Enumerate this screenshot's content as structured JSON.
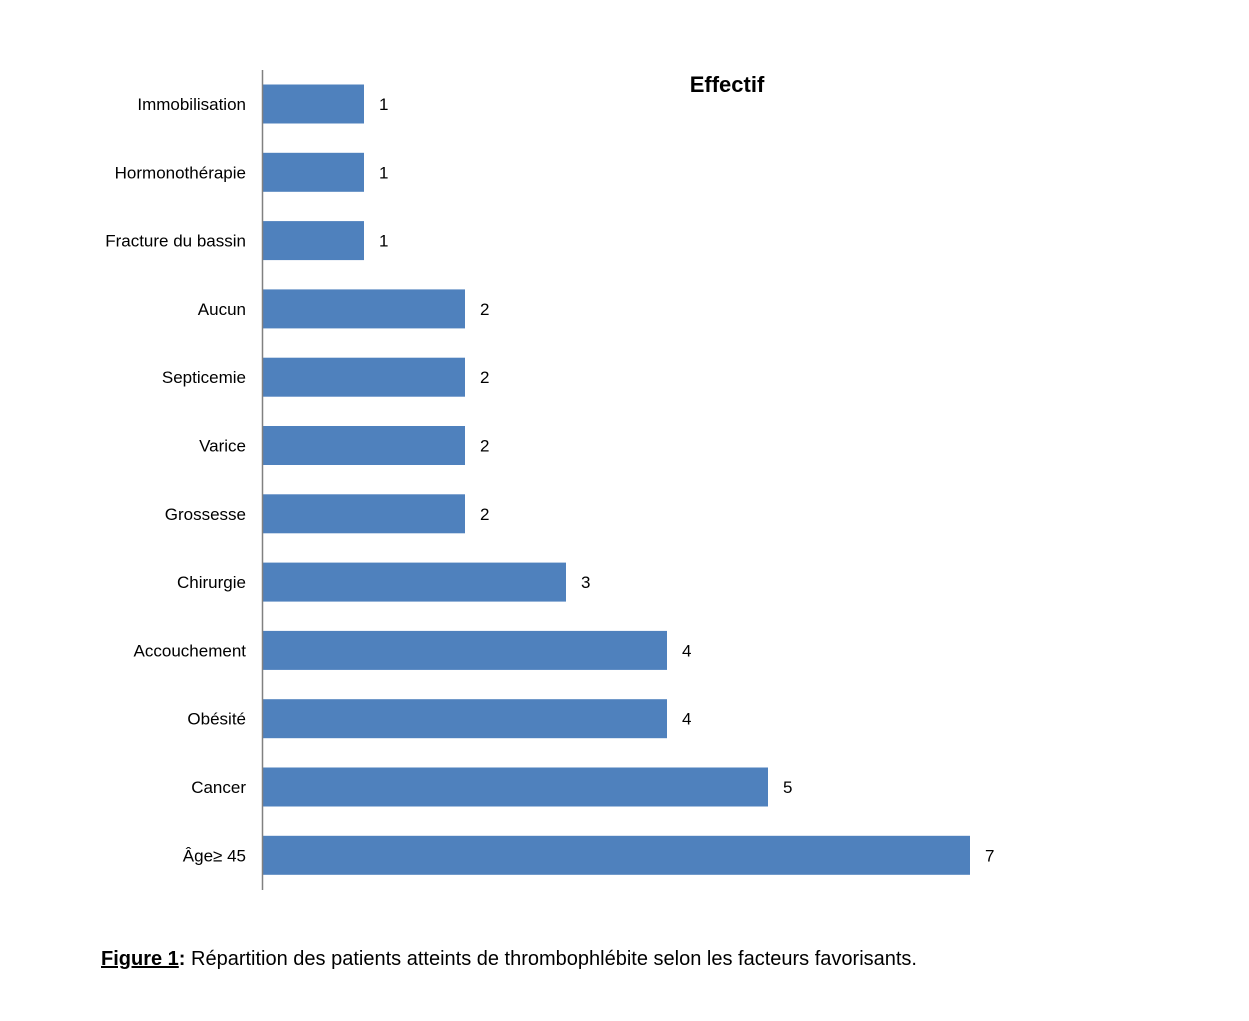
{
  "chart_data": {
    "type": "bar",
    "orientation": "horizontal",
    "title": "Effectif",
    "categories": [
      "Immobilisation",
      "Hormonothérapie",
      "Fracture du bassin",
      "Aucun",
      "Septicemie",
      "Varice",
      "Grossesse",
      "Chirurgie",
      "Accouchement",
      "Obésité",
      "Cancer",
      "Âge≥ 45"
    ],
    "values": [
      1,
      1,
      1,
      2,
      2,
      2,
      2,
      3,
      4,
      4,
      5,
      7
    ],
    "xlim": [
      0,
      7
    ],
    "grid": false,
    "legend": "none",
    "bar_color": "#4f81bd",
    "axis_color": "#808080"
  },
  "caption": {
    "prefix": "Figure 1",
    "colon": ":",
    "text": " Répartition des patients atteints de thrombophlébite selon les facteurs favorisants."
  }
}
